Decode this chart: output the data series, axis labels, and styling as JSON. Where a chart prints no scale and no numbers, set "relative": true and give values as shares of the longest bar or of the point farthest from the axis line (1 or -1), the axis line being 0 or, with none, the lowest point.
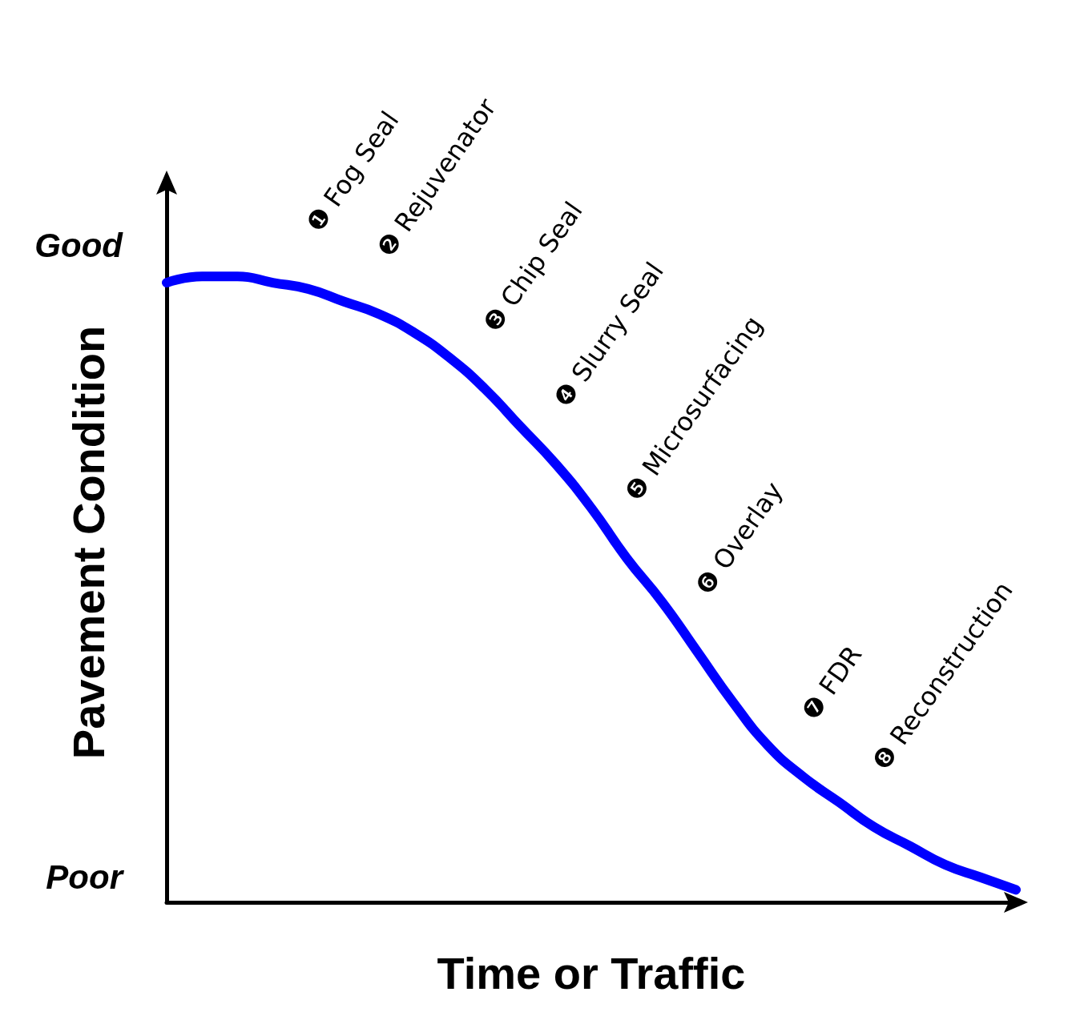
{
  "chart_data": {
    "type": "line",
    "xlabel": "Time or Traffic",
    "ylabel": "Pavement Condition",
    "relative": true,
    "categories": [
      null,
      null,
      null,
      null,
      null,
      null,
      null,
      null,
      null,
      null,
      null,
      null,
      null,
      null,
      null,
      null,
      null,
      null,
      null,
      null,
      null,
      null,
      null,
      null,
      null
    ],
    "series": [
      {
        "color": "#0000ff",
        "values": [
          0.99,
          1,
          1,
          0.99,
          0.98,
          0.96,
          0.94,
          0.91,
          0.87,
          0.82,
          0.76,
          0.7,
          0.63,
          0.55,
          0.48,
          0.4,
          0.32,
          0.25,
          0.2,
          0.16,
          0.12,
          0.09,
          0.06,
          0.04,
          0.02
        ]
      }
    ],
    "grid": false,
    "line_style": "solid",
    "annotations": [
      "Good",
      "Poor",
      "❶ Fog Seal",
      "❷ Rejuvenator",
      "❸ Chip Seal",
      "❹ Slurry Seal",
      "❺ Microsurfacing",
      "❻ Overlay",
      "❼ FDR",
      "❽ Reconstruction"
    ]
  }
}
